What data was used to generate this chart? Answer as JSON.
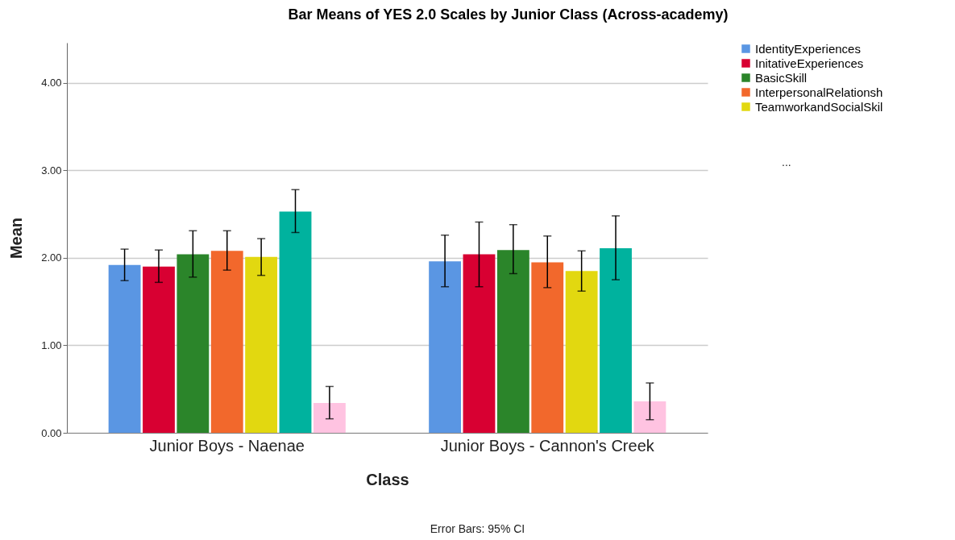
{
  "chart_data": {
    "type": "bar",
    "title": "Bar Means of YES 2.0 Scales by Junior Class (Across-academy)",
    "xlabel": "Class",
    "ylabel": "Mean",
    "categories": [
      "Junior Boys - Naenae",
      "Junior Boys - Cannon's Creek"
    ],
    "series": [
      {
        "name": "IdentityExperiences",
        "color": "#5a96e3",
        "values": [
          1.92,
          1.96
        ],
        "errors": [
          [
            1.74,
            2.1
          ],
          [
            1.67,
            2.26
          ]
        ]
      },
      {
        "name": "InitativeExperiences",
        "color": "#d80032",
        "values": [
          1.9,
          2.04
        ],
        "errors": [
          [
            1.72,
            2.09
          ],
          [
            1.67,
            2.41
          ]
        ]
      },
      {
        "name": "BasicSkill",
        "color": "#2b852a",
        "values": [
          2.04,
          2.09
        ],
        "errors": [
          [
            1.78,
            2.31
          ],
          [
            1.82,
            2.38
          ]
        ]
      },
      {
        "name": "InterpersonalRelationsh",
        "color": "#f2682c",
        "values": [
          2.08,
          1.95
        ],
        "errors": [
          [
            1.86,
            2.31
          ],
          [
            1.66,
            2.25
          ]
        ]
      },
      {
        "name": "TeamworkandSocialSkil",
        "color": "#e2d810",
        "values": [
          2.01,
          1.85
        ],
        "errors": [
          [
            1.8,
            2.22
          ],
          [
            1.62,
            2.08
          ]
        ]
      },
      {
        "color": "#00b29e",
        "values": [
          2.53,
          2.11
        ],
        "errors": [
          [
            2.29,
            2.78
          ],
          [
            1.75,
            2.48
          ]
        ]
      },
      {
        "color": "#ffc3e1",
        "values": [
          0.34,
          0.36
        ],
        "errors": [
          [
            0.16,
            0.53
          ],
          [
            0.15,
            0.57
          ]
        ]
      }
    ],
    "ylim": [
      0,
      4.46
    ],
    "yticks": [
      {
        "value": 0,
        "label": "0.00"
      },
      {
        "value": 1,
        "label": "1.00"
      },
      {
        "value": 2,
        "label": "2.00"
      },
      {
        "value": 3,
        "label": "3.00"
      },
      {
        "value": 4,
        "label": "4.00"
      }
    ],
    "grid": "y",
    "legend": "top right",
    "annotations": [
      "...",
      "Error Bars: 95% CI"
    ]
  }
}
